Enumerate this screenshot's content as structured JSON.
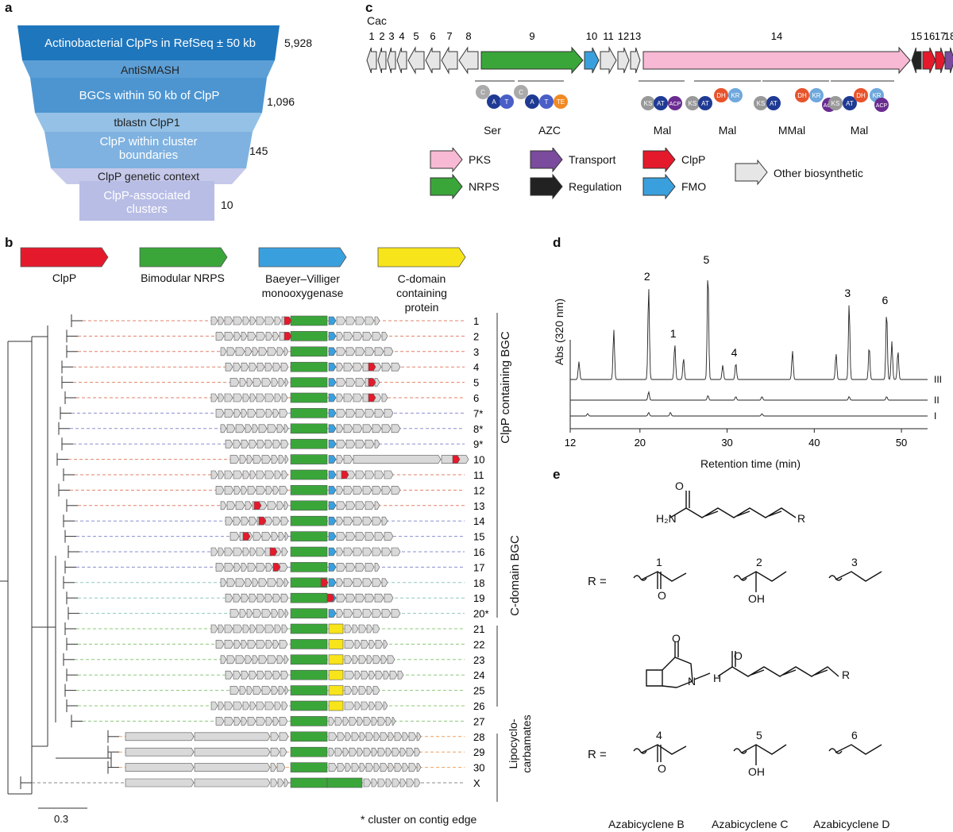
{
  "panel_labels": [
    "a",
    "b",
    "c",
    "d",
    "e"
  ],
  "funnel": {
    "stages": [
      {
        "text": "Actinobacterial ClpPs in  RefSeq ± 50 kb",
        "count": "5,928"
      },
      {
        "text": "BGCs within 50 kb of ClpP",
        "count": "1,096"
      },
      {
        "text": "ClpP within cluster boundaries",
        "count": "145"
      },
      {
        "text": "ClpP-associated clusters",
        "count": "10"
      }
    ],
    "filters": [
      "AntiSMASH",
      "tblastn ClpP1",
      "ClpP genetic context"
    ],
    "colors": [
      "#1e76bd",
      "#4d95d0",
      "#7fb2e0",
      "#b8bde6"
    ]
  },
  "legend_b": [
    {
      "label": "ClpP",
      "color": "#e41a2c"
    },
    {
      "label": "Bimodular NRPS",
      "color": "#3aa63a"
    },
    {
      "label": "Baeyer–Villiger monooxygenase",
      "color": "#3aa0dd"
    },
    {
      "label": "C-domain containing protein",
      "color": "#f8e41a"
    }
  ],
  "tree": {
    "leaves": [
      "1",
      "2",
      "3",
      "4",
      "5",
      "6",
      "7*",
      "8*",
      "9*",
      "10",
      "11",
      "12",
      "13",
      "14",
      "15",
      "16",
      "17",
      "18",
      "19",
      "20*",
      "21",
      "22",
      "23",
      "24",
      "25",
      "26",
      "27",
      "28",
      "29",
      "30",
      "X"
    ],
    "groups": [
      "ClpP containing BGC",
      "C-domain BGC",
      "Lipocyclo-carbamates"
    ],
    "scale_label": "0.3",
    "footnote": "* cluster on contig edge"
  },
  "cluster_c": {
    "strain": "Cac",
    "gene_numbers": [
      "1",
      "2",
      "3",
      "4",
      "5",
      "6",
      "7",
      "8",
      "9",
      "10",
      "11",
      "12",
      "13",
      "14",
      "15",
      "16",
      "17",
      "18"
    ],
    "modules": [
      "Ser",
      "AZC",
      "Mal",
      "Mal",
      "MMal",
      "Mal"
    ],
    "domains": [
      "C",
      "A",
      "T",
      "C",
      "A",
      "T",
      "TE",
      "KS",
      "AT",
      "ACP",
      "KS",
      "AT",
      "DH",
      "KR",
      "KS",
      "AT",
      "DH",
      "KR",
      "ACP",
      "KS",
      "AT",
      "DH",
      "KR",
      "ACP"
    ],
    "legend": [
      {
        "label": "PKS",
        "color": "#f7b9d4"
      },
      {
        "label": "Transport",
        "color": "#7b4b9e"
      },
      {
        "label": "ClpP",
        "color": "#e41a2c"
      },
      {
        "label": "Other biosynthetic",
        "color": "#e6e6e6"
      },
      {
        "label": "NRPS",
        "color": "#3aa63a"
      },
      {
        "label": "Regulation",
        "color": "#222222"
      },
      {
        "label": "FMO",
        "color": "#3aa0dd"
      }
    ]
  },
  "chart_data": {
    "type": "line",
    "xlabel": "Retention time (min)",
    "ylabel": "Abs (320 nm)",
    "xlim": [
      12,
      53
    ],
    "xticks": [
      12,
      20,
      30,
      40,
      50
    ],
    "series": [
      {
        "name": "III",
        "peaks": [
          [
            13,
            0.15
          ],
          [
            17,
            0.42
          ],
          [
            21,
            0.78
          ],
          [
            24,
            0.3
          ],
          [
            25,
            0.18
          ],
          [
            27.8,
            0.92
          ],
          [
            29.5,
            0.12
          ],
          [
            31,
            0.14
          ],
          [
            37.5,
            0.24
          ],
          [
            42.5,
            0.22
          ],
          [
            44,
            0.64
          ],
          [
            46.3,
            0.28
          ],
          [
            48.3,
            0.58
          ],
          [
            48.9,
            0.32
          ],
          [
            49.6,
            0.24
          ]
        ]
      },
      {
        "name": "II",
        "peaks": [
          [
            21,
            0.07
          ],
          [
            27.8,
            0.04
          ],
          [
            31,
            0.03
          ],
          [
            34,
            0.03
          ],
          [
            44,
            0.03
          ],
          [
            48.3,
            0.03
          ]
        ]
      },
      {
        "name": "I",
        "peaks": [
          [
            14,
            0.02
          ],
          [
            21,
            0.03
          ],
          [
            23.5,
            0.03
          ],
          [
            34,
            0.02
          ]
        ]
      }
    ],
    "peak_labels": [
      [
        "2",
        21
      ],
      [
        "1",
        24
      ],
      [
        "5",
        27.8
      ],
      [
        "4",
        31
      ],
      [
        "3",
        44
      ],
      [
        "6",
        48.3
      ]
    ]
  },
  "structures": {
    "upper_labels": [
      "1",
      "2",
      "3"
    ],
    "lower_labels": [
      "4",
      "5",
      "6"
    ],
    "r_eq": "R =",
    "atoms": {
      "o": "O",
      "h2n": "H₂N",
      "r": "R",
      "oh": "OH",
      "n": "N",
      "nh": "H"
    },
    "names": [
      "Azabicyclene B",
      "Azabicyclene C",
      "Azabicyclene D"
    ]
  }
}
